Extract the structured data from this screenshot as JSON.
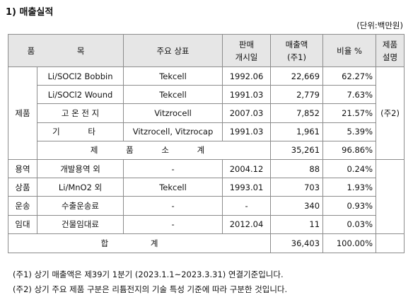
{
  "section_title": "1) 매출실적",
  "unit_note": "(단위:백만원)",
  "headers": {
    "item": "품  목",
    "brand": "주요 상표",
    "launch_l1": "판매",
    "launch_l2": "개시일",
    "sales_l1": "매출액",
    "sales_l2": "(주1)",
    "ratio": "비율 %",
    "remark_l1": "제품",
    "remark_l2": "설명"
  },
  "groups": {
    "product": "제품",
    "service": "용역",
    "goods": "상품",
    "transport": "운송",
    "lease": "임대"
  },
  "product_rows": [
    {
      "item": "Li/SOCl2 Bobbin",
      "brand": "Tekcell",
      "date": "1992.06",
      "sales": "22,669",
      "ratio": "62.27%"
    },
    {
      "item": "Li/SOCl2 Wound",
      "brand": "Tekcell",
      "date": "1991.03",
      "sales": "2,779",
      "ratio": "7.63%"
    },
    {
      "item": "고 온 전 지",
      "brand": "Vitzrocell",
      "date": "2007.03",
      "sales": "7,852",
      "ratio": "21.57%"
    },
    {
      "item": "기  타",
      "brand": "Vitzrocell, Vitzrocap",
      "date": "1991.03",
      "sales": "1,961",
      "ratio": "5.39%"
    }
  ],
  "product_subtotal": {
    "label": "제 품 소 계",
    "sales": "35,261",
    "ratio": "96.86%"
  },
  "remark_product": "(주2)",
  "other_rows": [
    {
      "item": "개발용역 외",
      "brand": "-",
      "date": "2004.12",
      "sales": "88",
      "ratio": "0.24%"
    },
    {
      "item": "Li/MnO2 외",
      "brand": "Tekcell",
      "date": "1993.01",
      "sales": "703",
      "ratio": "1.93%"
    },
    {
      "item": "수출운송료",
      "brand": "-",
      "date": "-",
      "sales": "340",
      "ratio": "0.93%"
    },
    {
      "item": "건물임대료",
      "brand": "-",
      "date": "2012.04",
      "sales": "11",
      "ratio": "0.03%"
    }
  ],
  "total": {
    "label": "합 계",
    "sales": "36,403",
    "ratio": "100.00%"
  },
  "notes": [
    "(주1) 상기 매출액은 제39기 1분기 (2023.1.1~2023.3.31) 연결기준입니다.",
    "(주2) 상기 주요 제품 구분은 리튬전지의 기술 특성 기준에 따라 구분한 것입니다."
  ]
}
